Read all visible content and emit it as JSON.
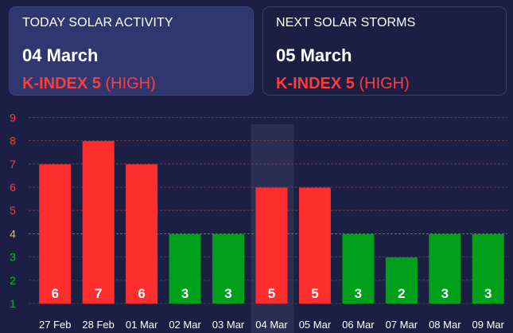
{
  "today": {
    "label": "TODAY SOLAR ACTIVITY",
    "date": "04 March",
    "kindex_label": "K-INDEX 5",
    "level": "(HIGH)"
  },
  "next": {
    "label": "NEXT SOLAR STORMS",
    "date": "05 March",
    "kindex_label": "K-INDEX 5",
    "level": "(HIGH)"
  },
  "colors": {
    "background": "#1c1f44",
    "high": "#ff2e2e",
    "low": "#00a01a",
    "moderate_tick": "#e8c23a",
    "highlight": "#3a3d62"
  },
  "chart_data": {
    "type": "bar",
    "categories": [
      "27 Feb",
      "28 Feb",
      "01 Mar",
      "02 Mar",
      "03 Mar",
      "04 Mar",
      "05 Mar",
      "06 Mar",
      "07 Mar",
      "08 Mar",
      "09 Mar"
    ],
    "values": [
      6,
      7,
      6,
      3,
      3,
      5,
      5,
      3,
      2,
      3,
      3
    ],
    "bar_colors": [
      "red",
      "red",
      "red",
      "green",
      "green",
      "red",
      "red",
      "green",
      "green",
      "green",
      "green"
    ],
    "y_ticks": [
      "1",
      "2",
      "3",
      "4",
      "5",
      "6",
      "7",
      "8",
      "9"
    ],
    "y_tick_colors": [
      "#00c020",
      "#00c020",
      "#00c020",
      "#e8c23a",
      "#ff3b3b",
      "#ff3b3b",
      "#ff3b3b",
      "#ff3b3b",
      "#ff3b3b"
    ],
    "ylim": [
      1,
      9
    ],
    "highlighted_category": "04 Mar",
    "grid": true
  }
}
